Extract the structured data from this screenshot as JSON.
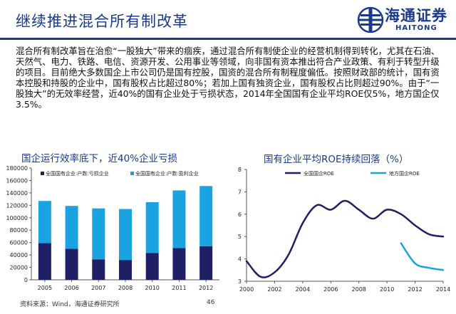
{
  "header": {
    "title": "继续推进混合所有制改革",
    "logo_cn": "海通证券",
    "logo_en": "HAITONG"
  },
  "intro_text": "混合所有制改革旨在治愈“一股独大”带来的痼疾，通过混合所有制使企业的经营机制得到转化，尤其在石油、天然气、电力、铁路、电信、资源开发、公用事业等领域，向非国有资本推出符合产业政策、有利于转型升级的项目。目前绝大多数国企上市公司仍是国有控股，国资的混合所有制程度偏低。按照财政部的统计，国有资本控股和持股的企业中，国有股权占比超过80%；若加上国有独资企业，国有股权占比则超过90%。由于“一股独大”的无效率经营，近40%的国有企业处于亏损状态，2014年全国国有企业平均ROE仅5%，地方国企仅3.5%。",
  "footer": {
    "source": "资料来源：Wind，海通证券研究所",
    "page": "46"
  },
  "colors": {
    "navy": "#1f1f66",
    "cyan": "#1aa3e0",
    "title_blue": "#1a3a8a"
  },
  "chart_data": [
    {
      "type": "bar",
      "title": "国企运行效率底下，近40%企业亏损",
      "categories": [
        "2005",
        "2006",
        "2007",
        "2008",
        "2010",
        "2011",
        "2012"
      ],
      "stacked": true,
      "series": [
        {
          "name": "全国国有企业:户数:亏损企业",
          "values": [
            59000,
            50000,
            33000,
            32000,
            43000,
            51000,
            54000
          ]
        },
        {
          "name": "全国国有企业:户数:盈利企业",
          "values": [
            68000,
            69000,
            82000,
            82000,
            82000,
            93000,
            97000
          ]
        }
      ],
      "ylim": [
        0,
        180000
      ],
      "yticks": [
        "0",
        "20000",
        "40000",
        "60000",
        "80000",
        "100000",
        "120000",
        "140000",
        "160000",
        "180000"
      ]
    },
    {
      "type": "line",
      "title": "国有企业平均ROE持续回落（%）",
      "xlim": [
        2000,
        2014
      ],
      "ylim": [
        3,
        8
      ],
      "xticks": [
        "2000",
        "2002",
        "2004",
        "2006",
        "2008",
        "2010",
        "2012",
        "2014"
      ],
      "yticks": [
        "3",
        "4",
        "5",
        "6",
        "7",
        "8"
      ],
      "series": [
        {
          "name": "全国国企ROE",
          "x": [
            2000,
            2001,
            2002,
            2003,
            2004,
            2005,
            2006,
            2007,
            2008,
            2009,
            2010,
            2011,
            2012,
            2013,
            2014
          ],
          "y": [
            3.9,
            3.2,
            3.4,
            4.2,
            5.6,
            6.4,
            6.2,
            6.6,
            6.2,
            5.8,
            6.2,
            6.0,
            5.5,
            5.1,
            5.0
          ]
        },
        {
          "name": "地方国企ROE",
          "x": [
            2011,
            2012,
            2013,
            2014
          ],
          "y": [
            4.7,
            3.8,
            3.6,
            3.5
          ]
        }
      ]
    }
  ]
}
